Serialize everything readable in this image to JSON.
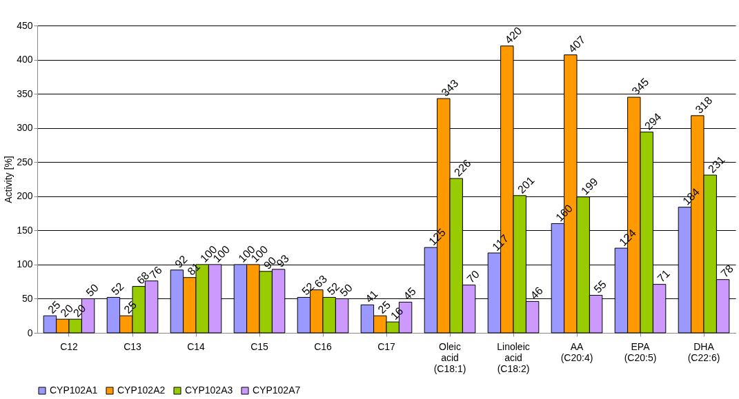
{
  "chart_data": {
    "type": "bar",
    "ylabel": "Activity [%]",
    "categories": [
      "C12",
      "C13",
      "C14",
      "C15",
      "C16",
      "C17",
      "Oleic\nacid\n(C18:1)",
      "Linoleic\nacid\n(C18:2)",
      "AA\n(C20:4)",
      "EPA\n(C20:5)",
      "DHA\n(C22:6)"
    ],
    "series": [
      {
        "name": "CYP102A1",
        "color": "#9999ff",
        "values": [
          25,
          52,
          92,
          100,
          52,
          41,
          125,
          117,
          160,
          124,
          184
        ]
      },
      {
        "name": "CYP102A2",
        "color": "#ff9900",
        "values": [
          20,
          25,
          81,
          100,
          63,
          25,
          343,
          420,
          407,
          345,
          318
        ]
      },
      {
        "name": "CYP102A3",
        "color": "#99cc00",
        "values": [
          20,
          68,
          100,
          90,
          52,
          16,
          226,
          201,
          199,
          294,
          231
        ]
      },
      {
        "name": "CYP102A7",
        "color": "#cc99ff",
        "values": [
          50,
          76,
          100,
          93,
          50,
          45,
          70,
          46,
          55,
          71,
          78
        ]
      }
    ],
    "ylim": [
      0,
      450
    ],
    "yticks": [
      0,
      50,
      100,
      150,
      200,
      250,
      300,
      350,
      400,
      450
    ],
    "grid": "y",
    "legend": "bottom",
    "data_labels": true
  }
}
